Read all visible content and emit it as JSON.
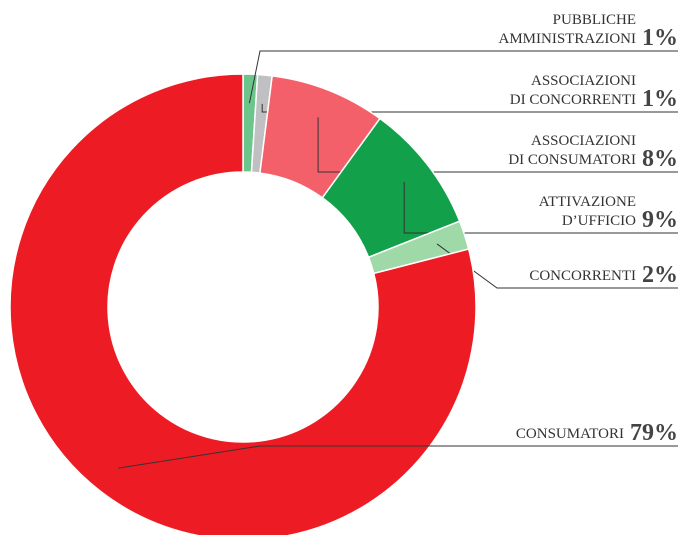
{
  "chart_data": {
    "type": "donut",
    "categories": [
      [
        "PUBBLICHE",
        "AMMINISTRAZIONI"
      ],
      [
        "ASSOCIAZIONI",
        "DI CONCORRENTI"
      ],
      [
        "ASSOCIAZIONI",
        "DI CONSUMATORI"
      ],
      [
        "ATTIVAZIONE",
        "D’UFFICIO"
      ],
      [
        "CONCORRENTI"
      ],
      [
        "CONSUMATORI"
      ]
    ],
    "values": [
      1,
      1,
      8,
      9,
      2,
      79
    ],
    "value_labels": [
      "1%",
      "1%",
      "8%",
      "9%",
      "2%",
      "79%"
    ],
    "colors": [
      "#6cc58b",
      "#c0c0c2",
      "#f4606a",
      "#12a04a",
      "#9fd9a8",
      "#ed1c24"
    ]
  }
}
